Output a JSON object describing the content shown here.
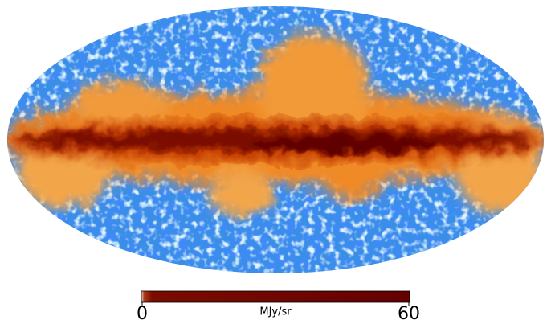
{
  "map": {
    "colorbar": {
      "unit": "MJy/sr",
      "range": [
        0,
        60
      ],
      "ticks": [
        0,
        60
      ]
    }
  }
}
